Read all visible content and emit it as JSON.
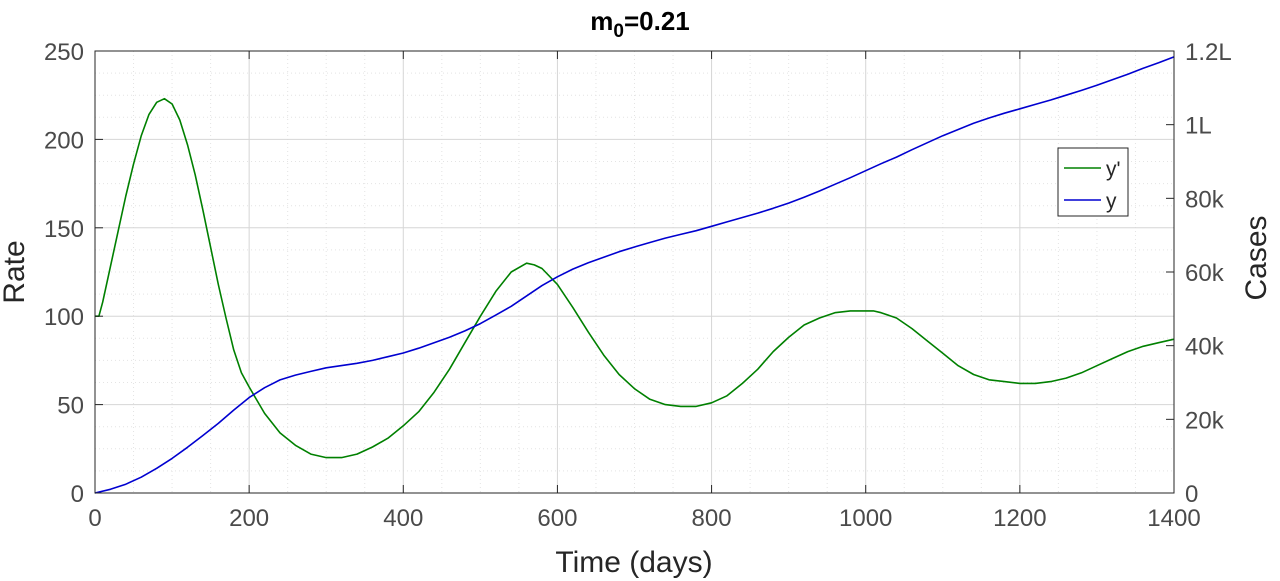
{
  "chart_data": {
    "type": "line",
    "title": {
      "main": "m",
      "subscript": "0",
      "suffix": "=0.21"
    },
    "xlabel": "Time (days)",
    "ylabel_left": "Rate",
    "ylabel_right": "Cases",
    "xlim": [
      0,
      1400
    ],
    "ylim_left": [
      0,
      250
    ],
    "ylim_right": [
      0,
      120000
    ],
    "x_ticks": [
      0,
      200,
      400,
      600,
      800,
      1000,
      1200,
      1400
    ],
    "y_left_ticks": [
      0,
      50,
      100,
      150,
      200,
      250
    ],
    "y_right_ticks": [
      {
        "value": 0,
        "label": "0"
      },
      {
        "value": 20000,
        "label": "20k"
      },
      {
        "value": 40000,
        "label": "40k"
      },
      {
        "value": 60000,
        "label": "60k"
      },
      {
        "value": 80000,
        "label": "80k"
      },
      {
        "value": 100000,
        "label": "1L"
      },
      {
        "value": 120000,
        "label": "1.2L"
      }
    ],
    "grid": true,
    "legend_position": "right",
    "series": [
      {
        "name": "y'",
        "axis": "left",
        "color": "#008000",
        "points": [
          [
            0,
            100
          ],
          [
            5,
            100
          ],
          [
            10,
            108
          ],
          [
            20,
            128
          ],
          [
            30,
            148
          ],
          [
            40,
            168
          ],
          [
            50,
            186
          ],
          [
            60,
            202
          ],
          [
            70,
            214
          ],
          [
            80,
            221
          ],
          [
            90,
            223
          ],
          [
            100,
            220
          ],
          [
            110,
            211
          ],
          [
            120,
            197
          ],
          [
            130,
            180
          ],
          [
            140,
            160
          ],
          [
            150,
            139
          ],
          [
            160,
            118
          ],
          [
            170,
            99
          ],
          [
            180,
            81
          ],
          [
            190,
            68
          ],
          [
            200,
            60
          ],
          [
            220,
            45
          ],
          [
            240,
            34
          ],
          [
            260,
            27
          ],
          [
            280,
            22
          ],
          [
            300,
            20
          ],
          [
            320,
            20
          ],
          [
            340,
            22
          ],
          [
            360,
            26
          ],
          [
            380,
            31
          ],
          [
            400,
            38
          ],
          [
            420,
            46
          ],
          [
            440,
            57
          ],
          [
            460,
            70
          ],
          [
            480,
            85
          ],
          [
            500,
            100
          ],
          [
            520,
            114
          ],
          [
            540,
            125
          ],
          [
            560,
            130
          ],
          [
            570,
            129
          ],
          [
            580,
            127
          ],
          [
            600,
            118
          ],
          [
            620,
            105
          ],
          [
            640,
            91
          ],
          [
            660,
            78
          ],
          [
            680,
            67
          ],
          [
            700,
            59
          ],
          [
            720,
            53
          ],
          [
            740,
            50
          ],
          [
            760,
            49
          ],
          [
            780,
            49
          ],
          [
            800,
            51
          ],
          [
            820,
            55
          ],
          [
            840,
            62
          ],
          [
            860,
            70
          ],
          [
            880,
            80
          ],
          [
            900,
            88
          ],
          [
            920,
            95
          ],
          [
            940,
            99
          ],
          [
            960,
            102
          ],
          [
            980,
            103
          ],
          [
            1000,
            103
          ],
          [
            1010,
            103
          ],
          [
            1020,
            102
          ],
          [
            1040,
            99
          ],
          [
            1060,
            93
          ],
          [
            1080,
            86
          ],
          [
            1100,
            79
          ],
          [
            1120,
            72
          ],
          [
            1140,
            67
          ],
          [
            1160,
            64
          ],
          [
            1180,
            63
          ],
          [
            1200,
            62
          ],
          [
            1220,
            62
          ],
          [
            1240,
            63
          ],
          [
            1260,
            65
          ],
          [
            1280,
            68
          ],
          [
            1300,
            72
          ],
          [
            1320,
            76
          ],
          [
            1340,
            80
          ],
          [
            1360,
            83
          ],
          [
            1380,
            85
          ],
          [
            1400,
            87
          ]
        ]
      },
      {
        "name": "y",
        "axis": "right",
        "color": "#0000d0",
        "points": [
          [
            0,
            0
          ],
          [
            20,
            1000
          ],
          [
            40,
            2400
          ],
          [
            60,
            4300
          ],
          [
            80,
            6700
          ],
          [
            100,
            9400
          ],
          [
            120,
            12400
          ],
          [
            140,
            15600
          ],
          [
            160,
            18900
          ],
          [
            180,
            22500
          ],
          [
            200,
            25900
          ],
          [
            220,
            28600
          ],
          [
            240,
            30700
          ],
          [
            260,
            32000
          ],
          [
            280,
            33000
          ],
          [
            300,
            34000
          ],
          [
            320,
            34600
          ],
          [
            340,
            35200
          ],
          [
            360,
            36000
          ],
          [
            380,
            37000
          ],
          [
            400,
            38000
          ],
          [
            420,
            39300
          ],
          [
            440,
            40800
          ],
          [
            460,
            42300
          ],
          [
            480,
            44000
          ],
          [
            500,
            46000
          ],
          [
            520,
            48300
          ],
          [
            540,
            50700
          ],
          [
            560,
            53500
          ],
          [
            580,
            56300
          ],
          [
            600,
            58700
          ],
          [
            620,
            60800
          ],
          [
            640,
            62500
          ],
          [
            660,
            64000
          ],
          [
            680,
            65500
          ],
          [
            700,
            66800
          ],
          [
            720,
            68000
          ],
          [
            740,
            69200
          ],
          [
            760,
            70200
          ],
          [
            780,
            71200
          ],
          [
            800,
            72400
          ],
          [
            820,
            73600
          ],
          [
            840,
            74800
          ],
          [
            860,
            76000
          ],
          [
            880,
            77300
          ],
          [
            900,
            78700
          ],
          [
            920,
            80300
          ],
          [
            940,
            82000
          ],
          [
            960,
            83800
          ],
          [
            980,
            85600
          ],
          [
            1000,
            87500
          ],
          [
            1020,
            89400
          ],
          [
            1040,
            91200
          ],
          [
            1060,
            93200
          ],
          [
            1080,
            95100
          ],
          [
            1100,
            97000
          ],
          [
            1120,
            98700
          ],
          [
            1140,
            100400
          ],
          [
            1160,
            101800
          ],
          [
            1180,
            103100
          ],
          [
            1200,
            104300
          ],
          [
            1220,
            105500
          ],
          [
            1240,
            106700
          ],
          [
            1260,
            108000
          ],
          [
            1280,
            109300
          ],
          [
            1300,
            110700
          ],
          [
            1320,
            112200
          ],
          [
            1340,
            113700
          ],
          [
            1360,
            115300
          ],
          [
            1380,
            116800
          ],
          [
            1400,
            118400
          ]
        ]
      }
    ]
  }
}
